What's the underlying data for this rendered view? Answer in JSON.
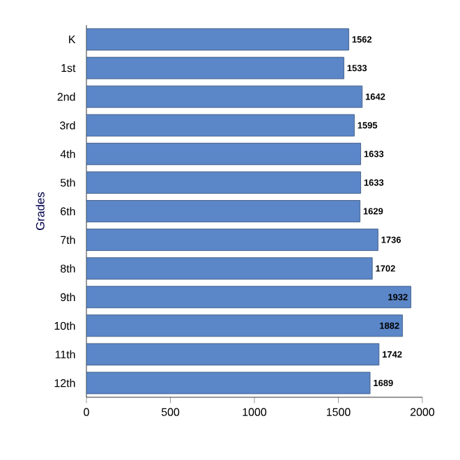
{
  "chart_data": {
    "type": "bar",
    "orientation": "horizontal",
    "ylabel": "Grades",
    "categories": [
      "K",
      "1st",
      "2nd",
      "3rd",
      "4th",
      "5th",
      "6th",
      "7th",
      "8th",
      "9th",
      "10th",
      "11th",
      "12th"
    ],
    "values": [
      1562,
      1533,
      1642,
      1595,
      1633,
      1633,
      1629,
      1736,
      1702,
      1932,
      1882,
      1742,
      1689
    ],
    "color": "#5b86c8",
    "xlim": [
      0,
      2000
    ],
    "xticks": [
      0,
      500,
      1000,
      1500,
      2000
    ],
    "data_labels": true
  }
}
